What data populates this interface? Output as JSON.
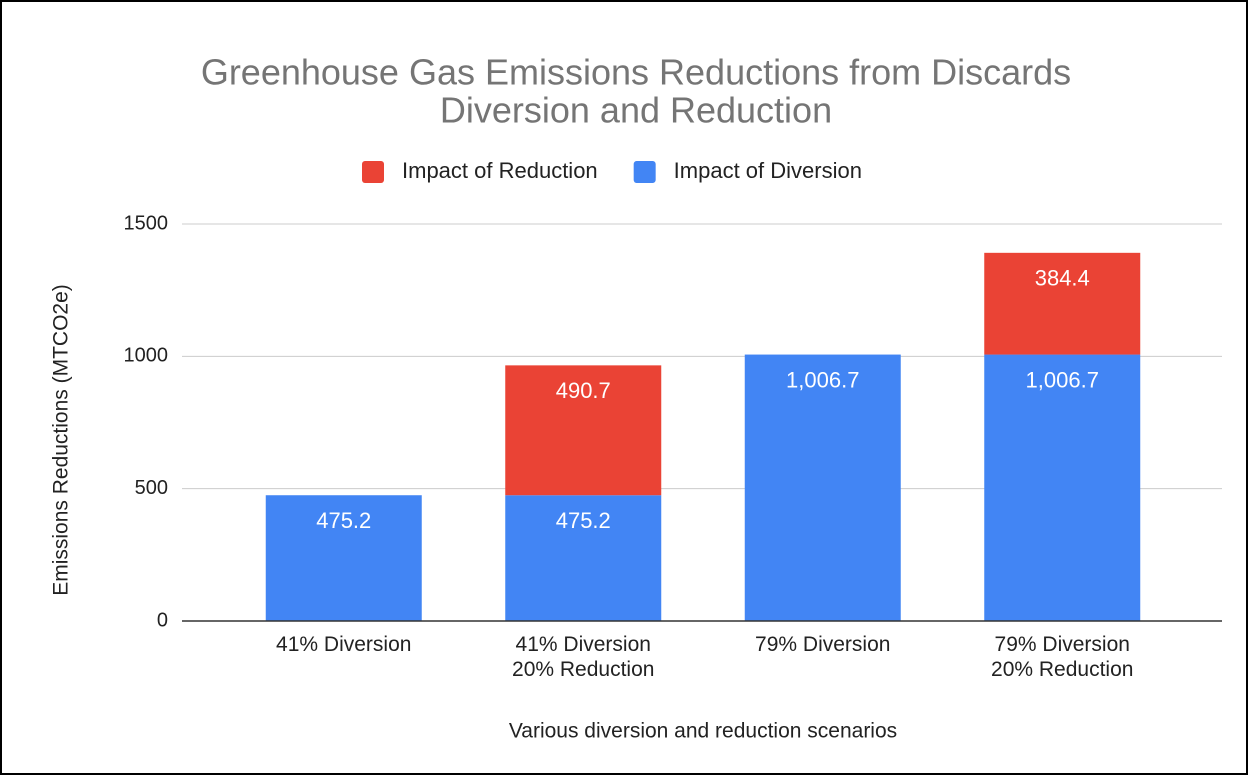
{
  "chart_data": {
    "type": "bar",
    "stacked": true,
    "title": [
      "Greenhouse Gas Emissions Reductions from Discards",
      "Diversion and Reduction"
    ],
    "x_label": "Various diversion and reduction scenarios",
    "y_label": "Emissions Reductions (MTCO2e)",
    "categories": [
      [
        "41% Diversion"
      ],
      [
        "41% Diversion",
        "20% Reduction"
      ],
      [
        "79% Diversion"
      ],
      [
        "79% Diversion",
        "20% Reduction"
      ]
    ],
    "series": [
      {
        "name": "Impact of Reduction",
        "color": "#ea4335",
        "values": [
          null,
          490.7,
          null,
          384.4
        ],
        "value_labels": [
          null,
          "490.7",
          null,
          "384.4"
        ]
      },
      {
        "name": "Impact of Diversion",
        "color": "#4285f4",
        "values": [
          475.2,
          475.2,
          1006.7,
          1006.7
        ],
        "value_labels": [
          "475.2",
          "475.2",
          "1,006.7",
          "1,006.7"
        ]
      }
    ],
    "ylim": [
      0,
      1500
    ],
    "yticks": [
      0,
      500,
      1000,
      1500
    ],
    "grid": true,
    "legend": "top"
  }
}
